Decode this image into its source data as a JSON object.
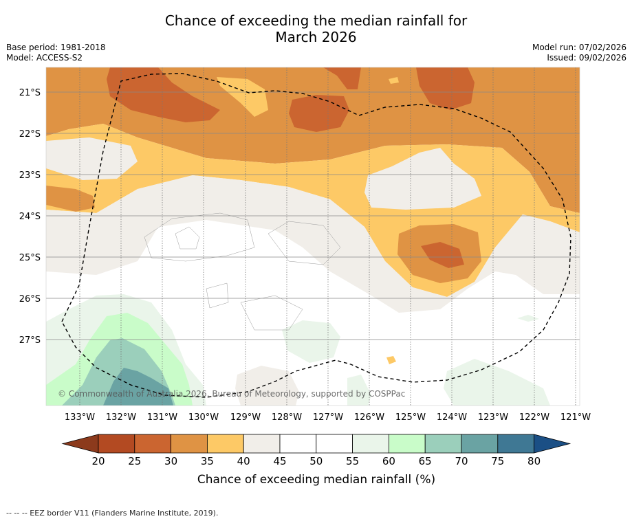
{
  "title": {
    "line1": "Chance of exceeding the median rainfall for",
    "line2": "March 2026"
  },
  "info_left": {
    "base_period": "Base period: 1981-2018",
    "model": "Model: ACCESS-S2"
  },
  "info_right": {
    "model_run": "Model run: 07/02/2026",
    "issued": "Issued: 09/02/2026"
  },
  "map": {
    "lat_labels": [
      "21°S",
      "22°S",
      "23°S",
      "24°S",
      "25°S",
      "26°S",
      "27°S"
    ],
    "lon_labels": [
      "133°W",
      "132°W",
      "131°W",
      "130°W",
      "129°W",
      "128°W",
      "127°W",
      "126°W",
      "125°W",
      "124°W",
      "123°W",
      "122°W",
      "121°W"
    ],
    "copyright": "© Commonwealth of Australia 2026, Bureau of Meteorology, supported by COSPPac"
  },
  "colorbar": {
    "ticks": [
      "20",
      "25",
      "30",
      "35",
      "40",
      "45",
      "50",
      "55",
      "60",
      "65",
      "70",
      "75",
      "80"
    ],
    "colors": [
      "#b34a22",
      "#cb6530",
      "#df9344",
      "#fdc966",
      "#f1eee9",
      "#ffffff",
      "#ffffff",
      "#eaf5ea",
      "#c9fcc9",
      "#9bcfbb",
      "#6aa3a3",
      "#3f7894"
    ],
    "under_color": "#8c3a1c",
    "over_color": "#1b4f85",
    "label": "Chance of exceeding median rainfall (%)"
  },
  "footer": "-- -- -- EEZ border V11 (Flanders Marine Institute, 2019)."
}
